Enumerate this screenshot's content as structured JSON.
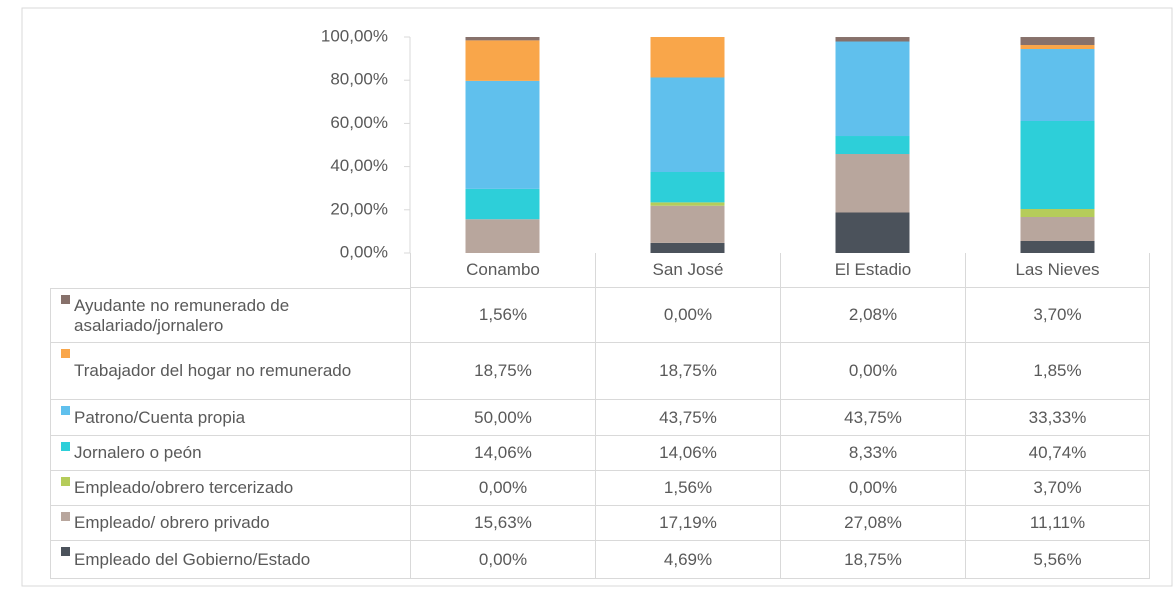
{
  "chart_data": {
    "type": "stacked_bar",
    "categories": [
      "Conambo",
      "San José",
      "El Estadio",
      "Las Nieves"
    ],
    "series": [
      {
        "name": "Empleado del Gobierno/Estado",
        "color": "#4b525b",
        "values": [
          0.0,
          4.69,
          18.75,
          5.56
        ],
        "value_labels": [
          "0,00%",
          "4,69%",
          "18,75%",
          "5,56%"
        ]
      },
      {
        "name": "Empleado/ obrero privado",
        "color": "#b8a69d",
        "values": [
          15.63,
          17.19,
          27.08,
          11.11
        ],
        "value_labels": [
          "15,63%",
          "17,19%",
          "27,08%",
          "11,11%"
        ]
      },
      {
        "name": "Empleado/obrero tercerizado",
        "color": "#b5cc5a",
        "values": [
          0.0,
          1.56,
          0.0,
          3.7
        ],
        "value_labels": [
          "0,00%",
          "1,56%",
          "0,00%",
          "3,70%"
        ]
      },
      {
        "name": "Jornalero o peón",
        "color": "#2dcfd9",
        "values": [
          14.06,
          14.06,
          8.33,
          40.74
        ],
        "value_labels": [
          "14,06%",
          "14,06%",
          "8,33%",
          "40,74%"
        ]
      },
      {
        "name": "Patrono/Cuenta propia",
        "color": "#60c0ed",
        "values": [
          50.0,
          43.75,
          43.75,
          33.33
        ],
        "value_labels": [
          "50,00%",
          "43,75%",
          "43,75%",
          "33,33%"
        ]
      },
      {
        "name": "Trabajador del hogar no remunerado",
        "color": "#f9a64a",
        "values": [
          18.75,
          18.75,
          0.0,
          1.85
        ],
        "value_labels": [
          "18,75%",
          "18,75%",
          "0,00%",
          "1,85%"
        ]
      },
      {
        "name": "Ayudante no remunerado de asalariado/jornalero",
        "color": "#87716b",
        "values": [
          1.56,
          0.0,
          2.08,
          3.7
        ],
        "value_labels": [
          "1,56%",
          "0,00%",
          "2,08%",
          "3,70%"
        ]
      }
    ],
    "ylim": [
      0,
      100
    ],
    "yticks": [
      {
        "value": 0,
        "label": "0,00%"
      },
      {
        "value": 20,
        "label": "20,00%"
      },
      {
        "value": 40,
        "label": "40,00%"
      },
      {
        "value": 60,
        "label": "60,00%"
      },
      {
        "value": 80,
        "label": "80,00%"
      },
      {
        "value": 100,
        "label": "100,00%"
      }
    ],
    "grid": false
  }
}
